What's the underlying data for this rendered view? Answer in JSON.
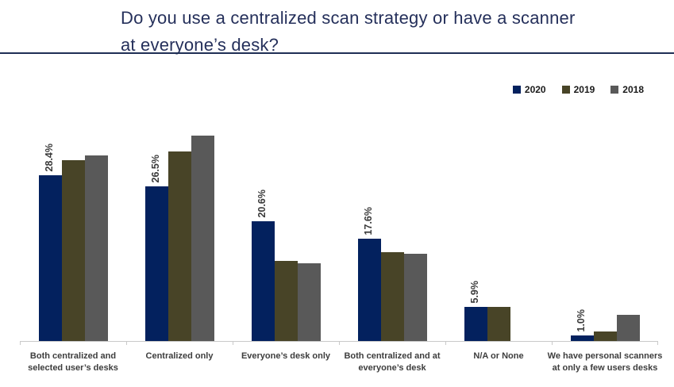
{
  "title": {
    "line1": "Do you use a centralized scan strategy or have a scanner",
    "line2": "at everyone’s desk?"
  },
  "legend": {
    "items": [
      {
        "label": "2020",
        "color": "#03215E"
      },
      {
        "label": "2019",
        "color": "#484427"
      },
      {
        "label": "2018",
        "color": "#595959"
      }
    ]
  },
  "colors": {
    "series_2020": "#03215E",
    "series_2019": "#484427",
    "series_2018": "#595959",
    "title_text": "#25305B",
    "title_rule": "#1F2F55",
    "axis_line": "#C9C9C9",
    "category_label": "#3D3D3D",
    "data_label": "#3A3A3A",
    "legend_text": "#1A1A1A",
    "background": "#FFFFFF"
  },
  "chart_data": {
    "type": "bar",
    "title": "Do you use a centralized scan strategy or have a scanner at everyone’s desk?",
    "categories": [
      "Both centralized and selected user’s desks",
      "Centralized only",
      "Everyone’s desk only",
      "Both centralized and at everyone’s desk",
      "N/A or None",
      "We have personal scanners at only a few users desks"
    ],
    "series": [
      {
        "name": "2020",
        "color": "#03215E",
        "values": [
          28.4,
          26.5,
          20.6,
          17.6,
          5.9,
          1.0
        ]
      },
      {
        "name": "2019",
        "color": "#484427",
        "values": [
          31.0,
          32.5,
          13.7,
          15.3,
          5.9,
          1.6
        ]
      },
      {
        "name": "2018",
        "color": "#595959",
        "values": [
          31.9,
          35.2,
          13.4,
          14.9,
          0,
          4.5
        ]
      }
    ],
    "data_labels": [
      "28.4%",
      "26.5%",
      "20.6%",
      "17.6%",
      "5.9%",
      "1.0%"
    ],
    "xlabel": "",
    "ylabel": "",
    "ylim": [
      0,
      38
    ],
    "grid": false,
    "legend_position": "top-right"
  }
}
